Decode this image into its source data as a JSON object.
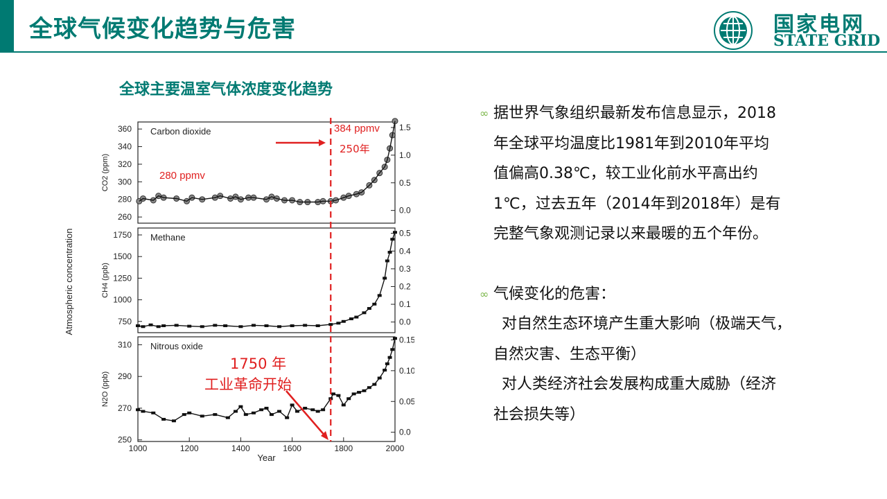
{
  "page": {
    "title": "全球气候变化趋势与危害",
    "colors": {
      "accent": "#007a72",
      "title": "#007a72",
      "annotation": "#e02020"
    }
  },
  "logo": {
    "cn": "国家电网",
    "en": "STATE GRID",
    "icon": "state-grid-globe-icon"
  },
  "chart_title": "全球主要温室气体浓度变化趋势",
  "text_panel": {
    "bullets": [
      {
        "icon": "swirl-bullet-icon",
        "lines": [
          "据世界气象组织最新发布信息显示，2018",
          "年全球平均温度比1981年到2010年平均",
          "值偏高0.38℃，较工业化前水平高出约",
          "1℃，过去五年（2014年到2018年）是有",
          "完整气象观测记录以来最暖的五个年份。"
        ]
      },
      {
        "icon": "swirl-bullet-icon",
        "lines": [
          "气候变化的危害："
        ],
        "sub": [
          "对自然生态环境产生重大影响（极端天气，",
          "自然灾害、生态平衡）",
          "对人类经济社会发展构成重大威胁（经济",
          "社会损失等）"
        ]
      }
    ]
  },
  "chart_data": {
    "type": "scatter",
    "shared_ylabel": "Atmospheric concentration",
    "xlabel": "Year",
    "xlim": [
      1000,
      2000
    ],
    "xticks": [
      1000,
      1200,
      1400,
      1600,
      1800,
      2000
    ],
    "marker_year": 1750,
    "panels": [
      {
        "name": "Carbon dioxide",
        "ylabel": "CO2 (ppm)",
        "ylim": [
          253,
          368
        ],
        "yticks": [
          260,
          280,
          300,
          320,
          340,
          360
        ],
        "right_ylim": [
          -0.23,
          1.6
        ],
        "right_yticks": [
          "0.0",
          "0.5",
          "1.0",
          "1.5"
        ],
        "points": [
          [
            1005,
            278
          ],
          [
            1020,
            281
          ],
          [
            1060,
            279
          ],
          [
            1080,
            284
          ],
          [
            1100,
            282
          ],
          [
            1150,
            281
          ],
          [
            1190,
            278
          ],
          [
            1210,
            282
          ],
          [
            1250,
            280
          ],
          [
            1300,
            282
          ],
          [
            1320,
            284
          ],
          [
            1360,
            281
          ],
          [
            1380,
            283
          ],
          [
            1400,
            280
          ],
          [
            1430,
            282
          ],
          [
            1450,
            282
          ],
          [
            1500,
            280
          ],
          [
            1520,
            283
          ],
          [
            1540,
            281
          ],
          [
            1570,
            279
          ],
          [
            1600,
            279
          ],
          [
            1630,
            277
          ],
          [
            1660,
            277
          ],
          [
            1700,
            277
          ],
          [
            1720,
            278
          ],
          [
            1750,
            278
          ],
          [
            1770,
            279
          ],
          [
            1800,
            282
          ],
          [
            1820,
            284
          ],
          [
            1850,
            286
          ],
          [
            1870,
            288
          ],
          [
            1900,
            296
          ],
          [
            1920,
            302
          ],
          [
            1940,
            310
          ],
          [
            1960,
            317
          ],
          [
            1970,
            325
          ],
          [
            1980,
            338
          ],
          [
            1990,
            353
          ],
          [
            2000,
            369
          ]
        ],
        "annotations": [
          "280 ppmv",
          "384 ppmv",
          "250年"
        ]
      },
      {
        "name": "Methane",
        "ylabel": "CH4 (ppb)",
        "ylim": [
          620,
          1830
        ],
        "yticks": [
          750,
          1000,
          1250,
          1500,
          1750
        ],
        "right_ylim": [
          -0.06,
          0.53
        ],
        "right_yticks": [
          "0.0",
          "0.1",
          "0.2",
          "0.3",
          "0.4",
          "0.5"
        ],
        "points": [
          [
            1000,
            700
          ],
          [
            1020,
            690
          ],
          [
            1050,
            710
          ],
          [
            1080,
            690
          ],
          [
            1100,
            700
          ],
          [
            1150,
            705
          ],
          [
            1200,
            695
          ],
          [
            1250,
            690
          ],
          [
            1300,
            705
          ],
          [
            1340,
            700
          ],
          [
            1400,
            690
          ],
          [
            1450,
            705
          ],
          [
            1500,
            700
          ],
          [
            1550,
            690
          ],
          [
            1600,
            700
          ],
          [
            1650,
            705
          ],
          [
            1700,
            700
          ],
          [
            1750,
            715
          ],
          [
            1780,
            730
          ],
          [
            1800,
            750
          ],
          [
            1830,
            780
          ],
          [
            1850,
            800
          ],
          [
            1880,
            850
          ],
          [
            1900,
            900
          ],
          [
            1920,
            950
          ],
          [
            1940,
            1050
          ],
          [
            1960,
            1250
          ],
          [
            1970,
            1450
          ],
          [
            1980,
            1550
          ],
          [
            1990,
            1700
          ],
          [
            2000,
            1780
          ]
        ]
      },
      {
        "name": "Nitrous oxide",
        "ylabel": "N2O (ppb)",
        "ylim": [
          249,
          315
        ],
        "yticks": [
          250,
          270,
          290,
          310
        ],
        "right_ylim": [
          -0.015,
          0.155
        ],
        "right_yticks": [
          "0.0",
          "0.05",
          "0.10",
          "0.15"
        ],
        "points": [
          [
            1000,
            269
          ],
          [
            1020,
            268
          ],
          [
            1060,
            267
          ],
          [
            1100,
            263
          ],
          [
            1140,
            262
          ],
          [
            1180,
            266
          ],
          [
            1200,
            267
          ],
          [
            1250,
            265
          ],
          [
            1300,
            266
          ],
          [
            1350,
            264
          ],
          [
            1380,
            268
          ],
          [
            1400,
            271
          ],
          [
            1420,
            266
          ],
          [
            1450,
            267
          ],
          [
            1480,
            269
          ],
          [
            1500,
            270
          ],
          [
            1520,
            266
          ],
          [
            1550,
            268
          ],
          [
            1580,
            264
          ],
          [
            1600,
            272
          ],
          [
            1620,
            268
          ],
          [
            1650,
            270
          ],
          [
            1680,
            269
          ],
          [
            1700,
            268
          ],
          [
            1720,
            269
          ],
          [
            1750,
            276
          ],
          [
            1760,
            279
          ],
          [
            1780,
            278
          ],
          [
            1800,
            272
          ],
          [
            1820,
            276
          ],
          [
            1840,
            279
          ],
          [
            1860,
            280
          ],
          [
            1880,
            281
          ],
          [
            1900,
            283
          ],
          [
            1920,
            285
          ],
          [
            1940,
            289
          ],
          [
            1960,
            294
          ],
          [
            1970,
            298
          ],
          [
            1980,
            302
          ],
          [
            1990,
            307
          ],
          [
            2000,
            314
          ]
        ],
        "annotations": [
          "1750 年",
          "工业革命开始"
        ]
      }
    ]
  }
}
